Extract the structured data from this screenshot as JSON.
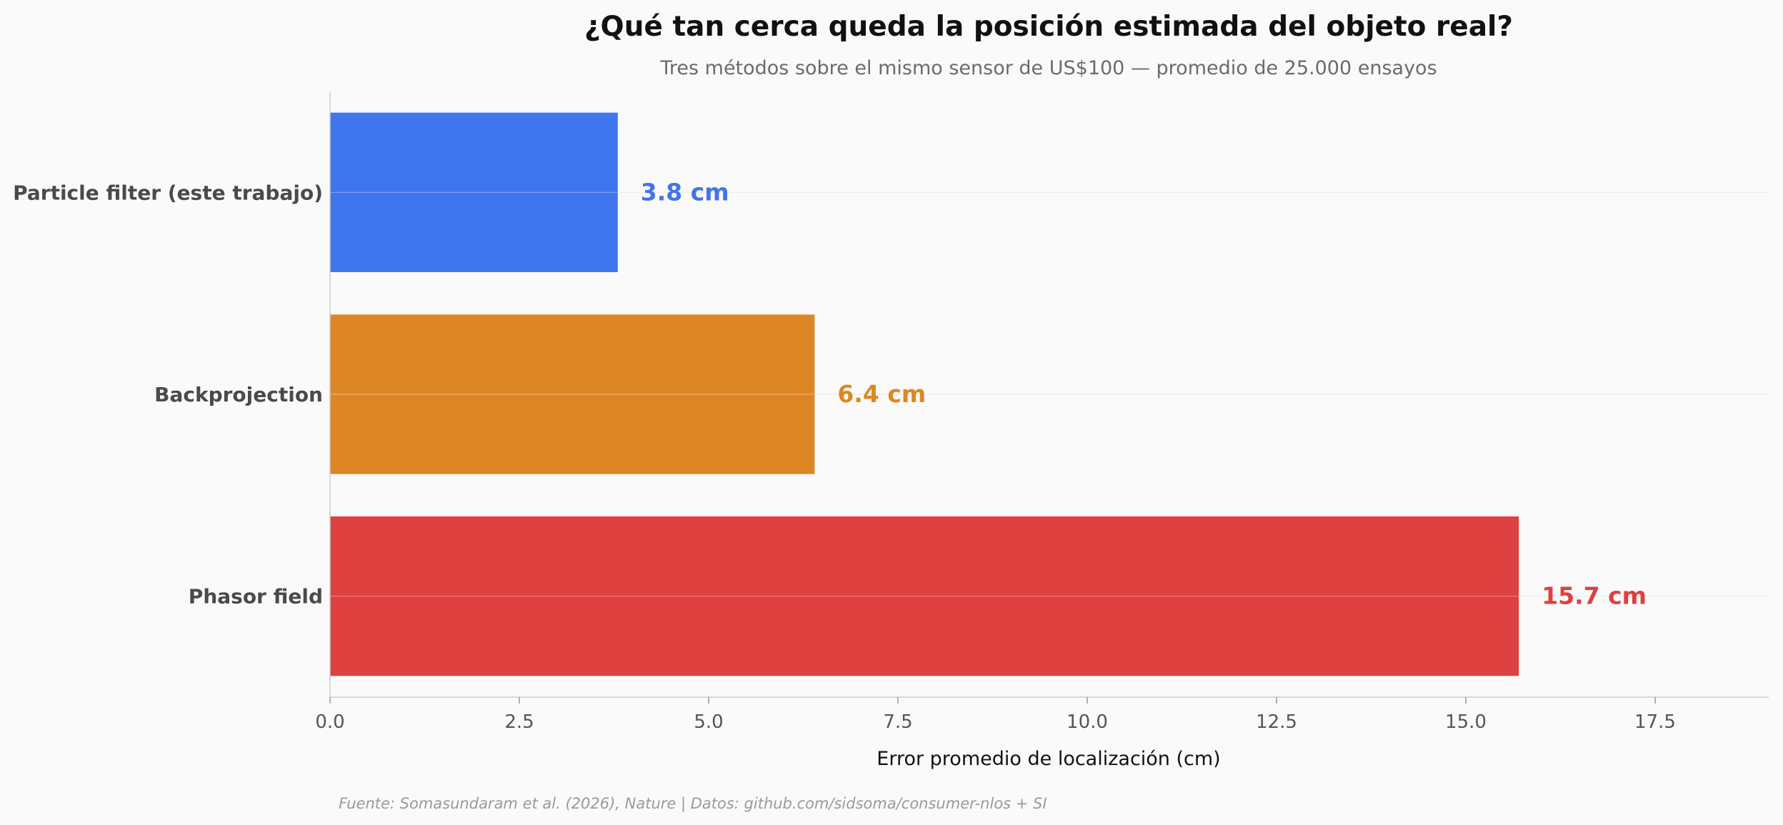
{
  "chart_data": {
    "type": "bar",
    "orientation": "horizontal",
    "title": "¿Qué tan cerca queda la posición estimada del objeto real?",
    "subtitle": "Tres métodos sobre el mismo sensor de US$100 — promedio de 25.000 ensayos",
    "categories": [
      "Particle filter (este trabajo)",
      "Backprojection",
      "Phasor field"
    ],
    "values": [
      3.8,
      6.4,
      15.7
    ],
    "value_labels": [
      "3.8 cm",
      "6.4 cm",
      "15.7 cm"
    ],
    "colors": [
      "#3f76ed",
      "#dd8724",
      "#df4040"
    ],
    "xlabel": "Error promedio de localización (cm)",
    "ylabel": "",
    "xlim": [
      0,
      19
    ],
    "xticks": [
      "0.0",
      "2.5",
      "5.0",
      "7.5",
      "10.0",
      "12.5",
      "15.0",
      "17.5"
    ],
    "grid": "horizontal, faint",
    "legend": "none",
    "source": "Fuente: Somasundaram et al. (2026), Nature | Datos: github.com/sidsoma/consumer-nlos + SI"
  }
}
